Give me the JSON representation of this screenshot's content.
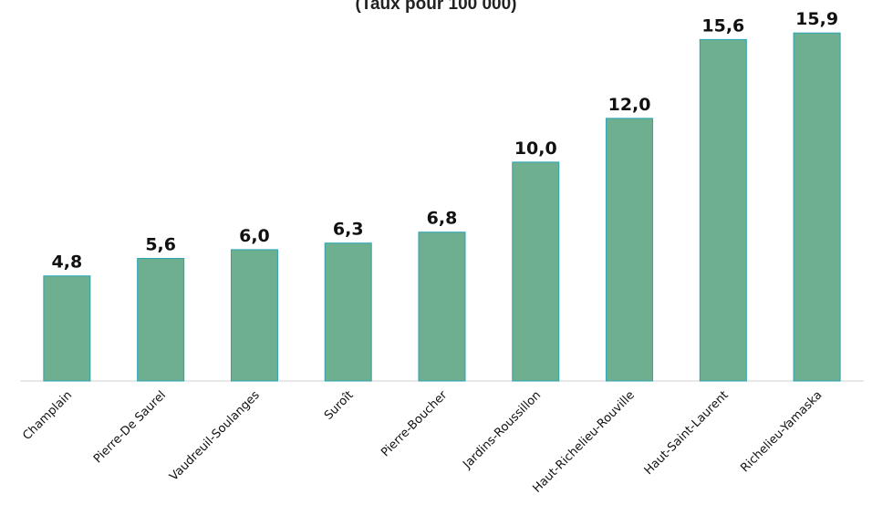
{
  "chart_data": {
    "type": "bar",
    "title": "",
    "subtitle": "(Taux pour 100 000)",
    "xlabel": "",
    "ylabel": "",
    "categories": [
      "Champlain",
      "Pierre-De Saurel",
      "Vaudreuil-Soulanges",
      "Suroît",
      "Pierre-Boucher",
      "Jardins-Roussillon",
      "Haut-Richelieu-Rouville",
      "Haut-Saint-Laurent",
      "Richelieu-Yamaska"
    ],
    "values": [
      4.8,
      5.6,
      6.0,
      6.3,
      6.8,
      10.0,
      12.0,
      15.6,
      15.9
    ],
    "value_labels": [
      "4,8",
      "5,6",
      "6,0",
      "6,3",
      "6,8",
      "10,0",
      "12,0",
      "15,6",
      "15,9"
    ],
    "ylim": [
      0,
      16.2
    ],
    "grid": false,
    "legend": "none",
    "colors": {
      "bar_fill": "#6daf8e",
      "bar_stroke": "#2aa3b5",
      "axis": "#d0d0d0"
    }
  }
}
